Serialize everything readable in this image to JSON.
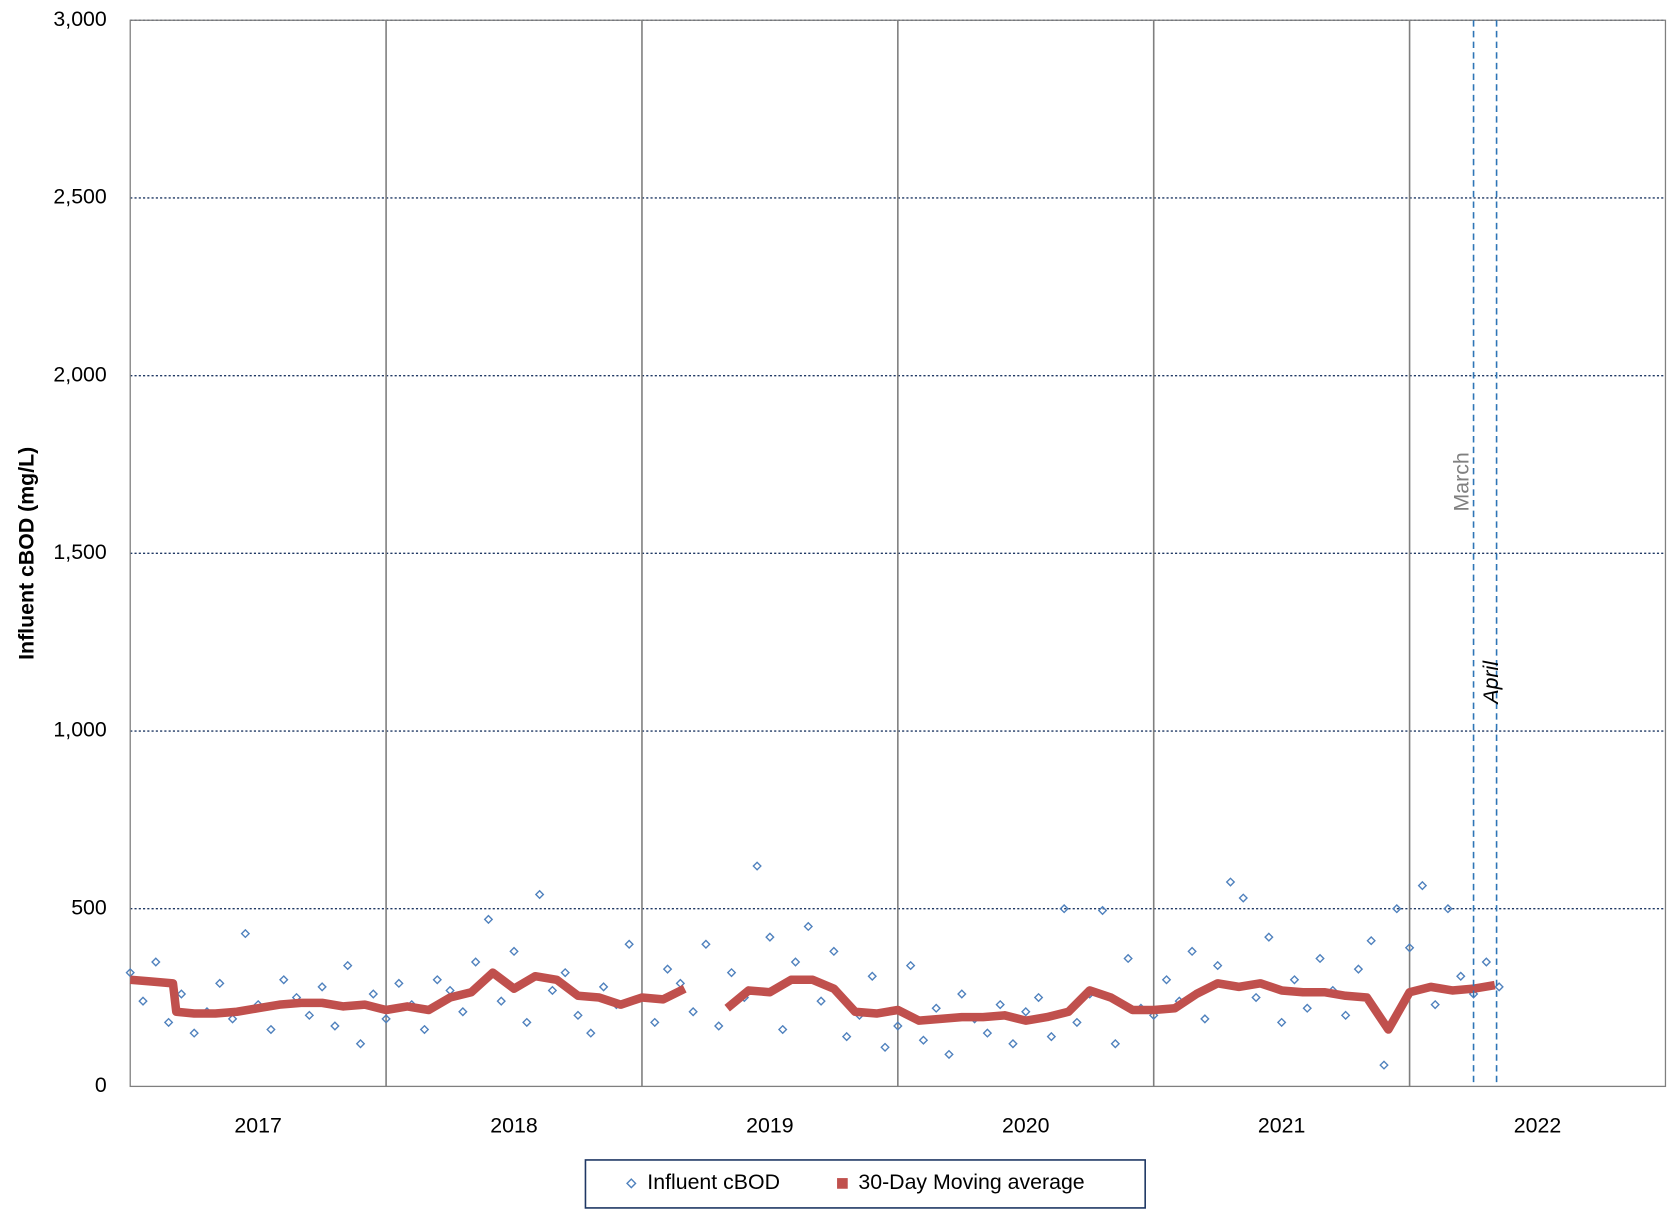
{
  "chart_data": {
    "type": "scatter",
    "y_label": "Influent  cBOD (mg/L)",
    "xlim": [
      2017,
      2023
    ],
    "xticks": [
      {
        "value": 2017.5,
        "label": "2017"
      },
      {
        "value": 2018.5,
        "label": "2018"
      },
      {
        "value": 2019.5,
        "label": "2019"
      },
      {
        "value": 2020.5,
        "label": "2020"
      },
      {
        "value": 2021.5,
        "label": "2021"
      },
      {
        "value": 2022.5,
        "label": "2022"
      }
    ],
    "x_grid_lines": [
      2018,
      2019,
      2020,
      2021,
      2022
    ],
    "ylim": [
      0,
      3000
    ],
    "yticks": [
      0,
      500,
      {
        "value": 1000,
        "label": "1,000"
      },
      {
        "value": 1500,
        "label": "1,500"
      },
      {
        "value": 2000,
        "label": "2,000"
      },
      {
        "value": 2500,
        "label": "2,500"
      },
      {
        "value": 3000,
        "label": "3,000"
      }
    ],
    "grid": true,
    "legend": "bottom",
    "annotations": [
      {
        "text": "March",
        "x": 2022.25,
        "color": "#808080",
        "italic": false
      },
      {
        "text": "April",
        "x": 2022.34,
        "color": "#000000",
        "italic": true
      }
    ],
    "annotation_line_color": "#2e75b6",
    "series": [
      {
        "name": "Influent cBOD",
        "color": "#4f81bd",
        "marker": "diamond",
        "x": [
          2017.0,
          2017.05,
          2017.1,
          2017.15,
          2017.2,
          2017.25,
          2017.3,
          2017.35,
          2017.4,
          2017.45,
          2017.5,
          2017.55,
          2017.6,
          2017.65,
          2017.7,
          2017.75,
          2017.8,
          2017.85,
          2017.9,
          2017.95,
          2018.0,
          2018.05,
          2018.1,
          2018.15,
          2018.2,
          2018.25,
          2018.3,
          2018.35,
          2018.4,
          2018.45,
          2018.5,
          2018.55,
          2018.6,
          2018.65,
          2018.7,
          2018.75,
          2018.8,
          2018.85,
          2018.9,
          2018.95,
          2019.0,
          2019.05,
          2019.1,
          2019.15,
          2019.2,
          2019.25,
          2019.3,
          2019.35,
          2019.4,
          2019.45,
          2019.5,
          2019.55,
          2019.6,
          2019.65,
          2019.7,
          2019.75,
          2019.8,
          2019.85,
          2019.9,
          2019.95,
          2020.0,
          2020.05,
          2020.1,
          2020.15,
          2020.2,
          2020.25,
          2020.3,
          2020.35,
          2020.4,
          2020.45,
          2020.5,
          2020.55,
          2020.6,
          2020.65,
          2020.7,
          2020.75,
          2020.8,
          2020.85,
          2020.9,
          2020.95,
          2021.0,
          2021.05,
          2021.1,
          2021.15,
          2021.2,
          2021.25,
          2021.3,
          2021.35,
          2021.4,
          2021.45,
          2021.5,
          2021.55,
          2021.6,
          2021.65,
          2021.7,
          2021.75,
          2021.8,
          2021.85,
          2021.9,
          2021.95,
          2022.0,
          2022.05,
          2022.1,
          2022.15,
          2022.2,
          2022.25,
          2022.3,
          2022.35
        ],
        "values": [
          320,
          240,
          350,
          180,
          260,
          150,
          210,
          290,
          190,
          430,
          230,
          160,
          300,
          250,
          200,
          280,
          170,
          340,
          120,
          260,
          190,
          290,
          230,
          160,
          300,
          270,
          210,
          350,
          470,
          240,
          380,
          180,
          540,
          270,
          320,
          200,
          150,
          280,
          230,
          400,
          250,
          180,
          330,
          290,
          210,
          400,
          170,
          320,
          250,
          620,
          420,
          160,
          350,
          450,
          240,
          380,
          140,
          200,
          310,
          110,
          170,
          340,
          130,
          220,
          90,
          260,
          190,
          150,
          230,
          120,
          210,
          250,
          140,
          500,
          180,
          260,
          495,
          120,
          360,
          220,
          200,
          300,
          240,
          380,
          190,
          340,
          575,
          530,
          250,
          420,
          180,
          300,
          220,
          360,
          270,
          200,
          330,
          410,
          60,
          500,
          390,
          565,
          230,
          500,
          310,
          260,
          350,
          280
        ]
      },
      {
        "name": "30-Day Moving average",
        "color": "#c0504d",
        "marker": "square",
        "x": [
          2017.0,
          2017.083,
          2017.167,
          2017.18,
          2017.25,
          2017.333,
          2017.417,
          2017.5,
          2017.583,
          2017.667,
          2017.75,
          2017.833,
          2017.917,
          2018.0,
          2018.083,
          2018.167,
          2018.25,
          2018.333,
          2018.417,
          2018.5,
          2018.583,
          2018.667,
          2018.75,
          2018.833,
          2018.917,
          2019.0,
          2019.083,
          2019.167,
          2019.25,
          2019.333,
          2019.417,
          2019.5,
          2019.583,
          2019.667,
          2019.75,
          2019.833,
          2019.917,
          2020.0,
          2020.083,
          2020.167,
          2020.25,
          2020.333,
          2020.417,
          2020.5,
          2020.583,
          2020.667,
          2020.75,
          2020.833,
          2020.917,
          2021.0,
          2021.083,
          2021.167,
          2021.25,
          2021.333,
          2021.417,
          2021.5,
          2021.583,
          2021.667,
          2021.75,
          2021.833,
          2021.917,
          2022.0,
          2022.083,
          2022.167,
          2022.25,
          2022.333
        ],
        "values": [
          300,
          295,
          290,
          210,
          205,
          205,
          210,
          220,
          230,
          235,
          235,
          225,
          230,
          215,
          225,
          215,
          250,
          265,
          320,
          275,
          310,
          300,
          255,
          250,
          230,
          250,
          245,
          275,
          null,
          220,
          270,
          265,
          300,
          300,
          275,
          210,
          205,
          215,
          185,
          190,
          195,
          195,
          200,
          185,
          195,
          210,
          270,
          250,
          215,
          215,
          220,
          260,
          290,
          280,
          290,
          270,
          265,
          265,
          255,
          250,
          160,
          265,
          280,
          270,
          275,
          285
        ]
      }
    ]
  }
}
